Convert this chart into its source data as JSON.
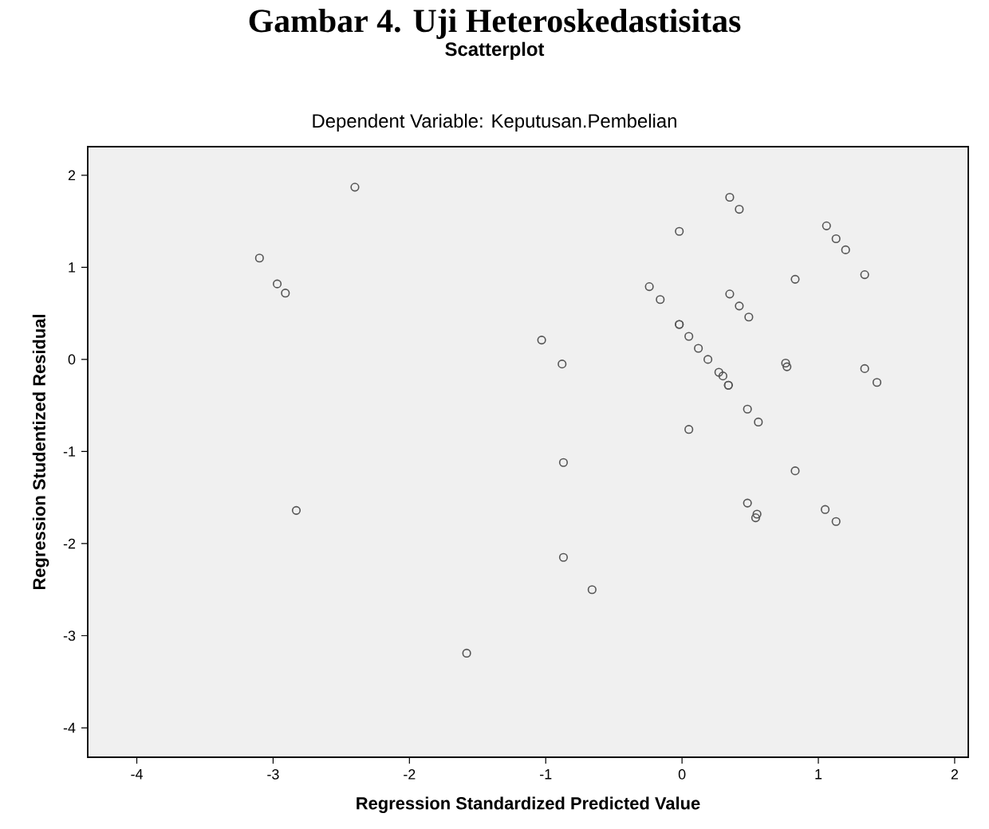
{
  "chart_data": {
    "type": "scatter",
    "title": "Gambar 4. Uji Heteroskedastisitas",
    "subtitle": "Scatterplot",
    "annotations": [
      "Dependent Variable: Keputusan.Pembelian"
    ],
    "xlabel": "Regression Standardized Predicted Value",
    "ylabel": "Regression Studentized Residual",
    "xlim": [
      -4.36,
      2.1
    ],
    "ylim": [
      -4.32,
      2.31
    ],
    "xticks": [
      -4,
      -3,
      -2,
      -1,
      0,
      1,
      2
    ],
    "yticks": [
      -4,
      -3,
      -2,
      -1,
      0,
      1,
      2
    ],
    "grid": false,
    "marker": "circle",
    "series": [
      {
        "color": "#555555",
        "x": [
          -2.4,
          -3.1,
          -2.97,
          -2.91,
          0.35,
          0.42,
          -0.02,
          1.06,
          1.13,
          1.2,
          1.34,
          0.83,
          -0.24,
          -0.16,
          0.35,
          0.42,
          0.49,
          -0.02,
          -0.02,
          0.05,
          0.12,
          0.19,
          0.27,
          0.3,
          0.34,
          0.34,
          -1.03,
          -0.88,
          0.76,
          0.77,
          1.34,
          1.43,
          0.48,
          0.56,
          0.05,
          -0.87,
          0.83,
          0.48,
          0.55,
          0.54,
          1.05,
          1.13,
          -0.87,
          -0.66,
          -2.83,
          -1.58
        ],
        "values": [
          1.87,
          1.1,
          0.82,
          0.72,
          1.76,
          1.63,
          1.39,
          1.45,
          1.31,
          1.19,
          0.92,
          0.87,
          0.79,
          0.65,
          0.71,
          0.58,
          0.46,
          0.38,
          0.38,
          0.25,
          0.12,
          0.0,
          -0.14,
          -0.18,
          -0.28,
          -0.28,
          0.21,
          -0.05,
          -0.04,
          -0.08,
          -0.1,
          -0.25,
          -0.54,
          -0.68,
          -0.76,
          -1.12,
          -1.21,
          -1.56,
          -1.68,
          -1.72,
          -1.63,
          -1.76,
          -2.15,
          -2.5,
          -1.64,
          -3.19
        ]
      }
    ]
  }
}
